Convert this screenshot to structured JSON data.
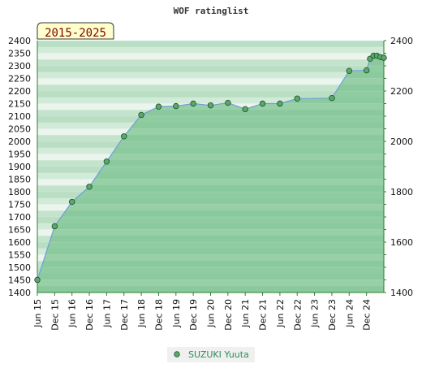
{
  "chart_data": {
    "type": "area",
    "title": "WOF ratinglist",
    "range_label": "2015-2025",
    "categories": [
      "Jun 15",
      "Dec 15",
      "Jun 16",
      "Dec 16",
      "Jun 17",
      "Dec 17",
      "Jun 18",
      "Dec 18",
      "Jun 19",
      "Dec 19",
      "Jun 20",
      "Dec 20",
      "Jun 21",
      "Dec 21",
      "Jun 22",
      "Dec 22",
      "Jun 23",
      "Dec 23",
      "Jun 24",
      "Dec 24"
    ],
    "ylim": [
      1400,
      2400
    ],
    "yticks_left": [
      1400,
      1450,
      1500,
      1550,
      1600,
      1650,
      1700,
      1750,
      1800,
      1850,
      1900,
      1950,
      2000,
      2050,
      2100,
      2150,
      2200,
      2250,
      2300,
      2350,
      2400
    ],
    "yticks_right": [
      1400,
      1600,
      1800,
      2000,
      2200,
      2400
    ],
    "grid": true,
    "legend_position": "bottom-center",
    "series": [
      {
        "name": "SUZUKI Yuuta",
        "color": "#6f9ddb",
        "marker_color": "#5aa86a",
        "fill_color": "#86c99a",
        "points": [
          {
            "x": 0.0,
            "y": 1450
          },
          {
            "x": 1.0,
            "y": 1663
          },
          {
            "x": 2.0,
            "y": 1760
          },
          {
            "x": 3.0,
            "y": 1820
          },
          {
            "x": 4.0,
            "y": 1920
          },
          {
            "x": 5.0,
            "y": 2020
          },
          {
            "x": 6.0,
            "y": 2105
          },
          {
            "x": 7.0,
            "y": 2138
          },
          {
            "x": 8.0,
            "y": 2140
          },
          {
            "x": 9.0,
            "y": 2150
          },
          {
            "x": 10.0,
            "y": 2143
          },
          {
            "x": 11.0,
            "y": 2153
          },
          {
            "x": 12.0,
            "y": 2128
          },
          {
            "x": 13.0,
            "y": 2150
          },
          {
            "x": 14.0,
            "y": 2150
          },
          {
            "x": 15.0,
            "y": 2170
          },
          {
            "x": 17.0,
            "y": 2172
          },
          {
            "x": 18.0,
            "y": 2280
          },
          {
            "x": 19.0,
            "y": 2282
          },
          {
            "x": 19.2,
            "y": 2328
          },
          {
            "x": 19.4,
            "y": 2340
          },
          {
            "x": 19.6,
            "y": 2340
          },
          {
            "x": 19.8,
            "y": 2335
          },
          {
            "x": 20.0,
            "y": 2332
          }
        ]
      }
    ]
  }
}
